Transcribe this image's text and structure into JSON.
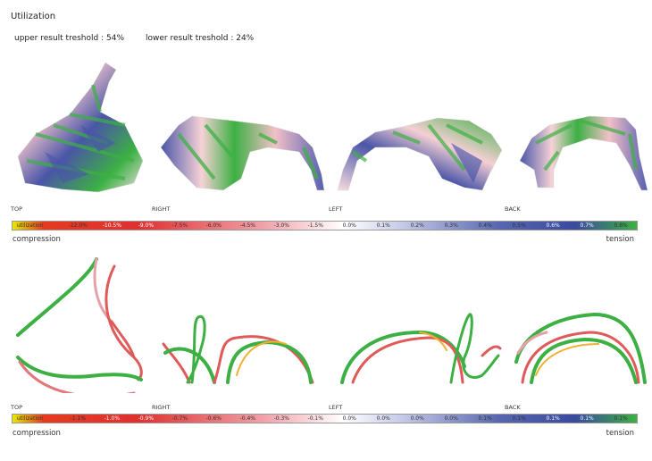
{
  "header": {
    "title": "Utilization",
    "upper_threshold": "upper result treshold : 54%",
    "lower_threshold": "lower result treshold : 24%"
  },
  "views": [
    "TOP",
    "RIGHT",
    "LEFT",
    "BACK"
  ],
  "legend_top": {
    "label": "utilization",
    "ticks": [
      "-12.0%",
      "-10.5%",
      "-9.0%",
      "-7.5%",
      "-6.0%",
      "-4.5%",
      "-3.0%",
      "-1.5%",
      "0.0%",
      "0.1%",
      "0.2%",
      "0.3%",
      "0.4%",
      "0.5%",
      "0.6%",
      "0.7%",
      "0.8%"
    ],
    "left_end": "compression",
    "right_end": "tension"
  },
  "legend_bottom": {
    "label": "utilization",
    "ticks": [
      "-1.1%",
      "-1.0%",
      "-0.9%",
      "-0.7%",
      "-0.6%",
      "-0.4%",
      "-0.3%",
      "-0.1%",
      "0.0%",
      "0.0%",
      "0.0%",
      "0.0%",
      "0.1%",
      "0.1%",
      "0.1%",
      "0.1%",
      "0.1%"
    ],
    "left_end": "compression",
    "right_end": "tension"
  },
  "colors": {
    "compression_start": "#e8e800",
    "compression_mid": "#e03030",
    "neutral": "#ffffff",
    "tension_mid": "#3a4aa0",
    "tension_end": "#3cb043"
  }
}
